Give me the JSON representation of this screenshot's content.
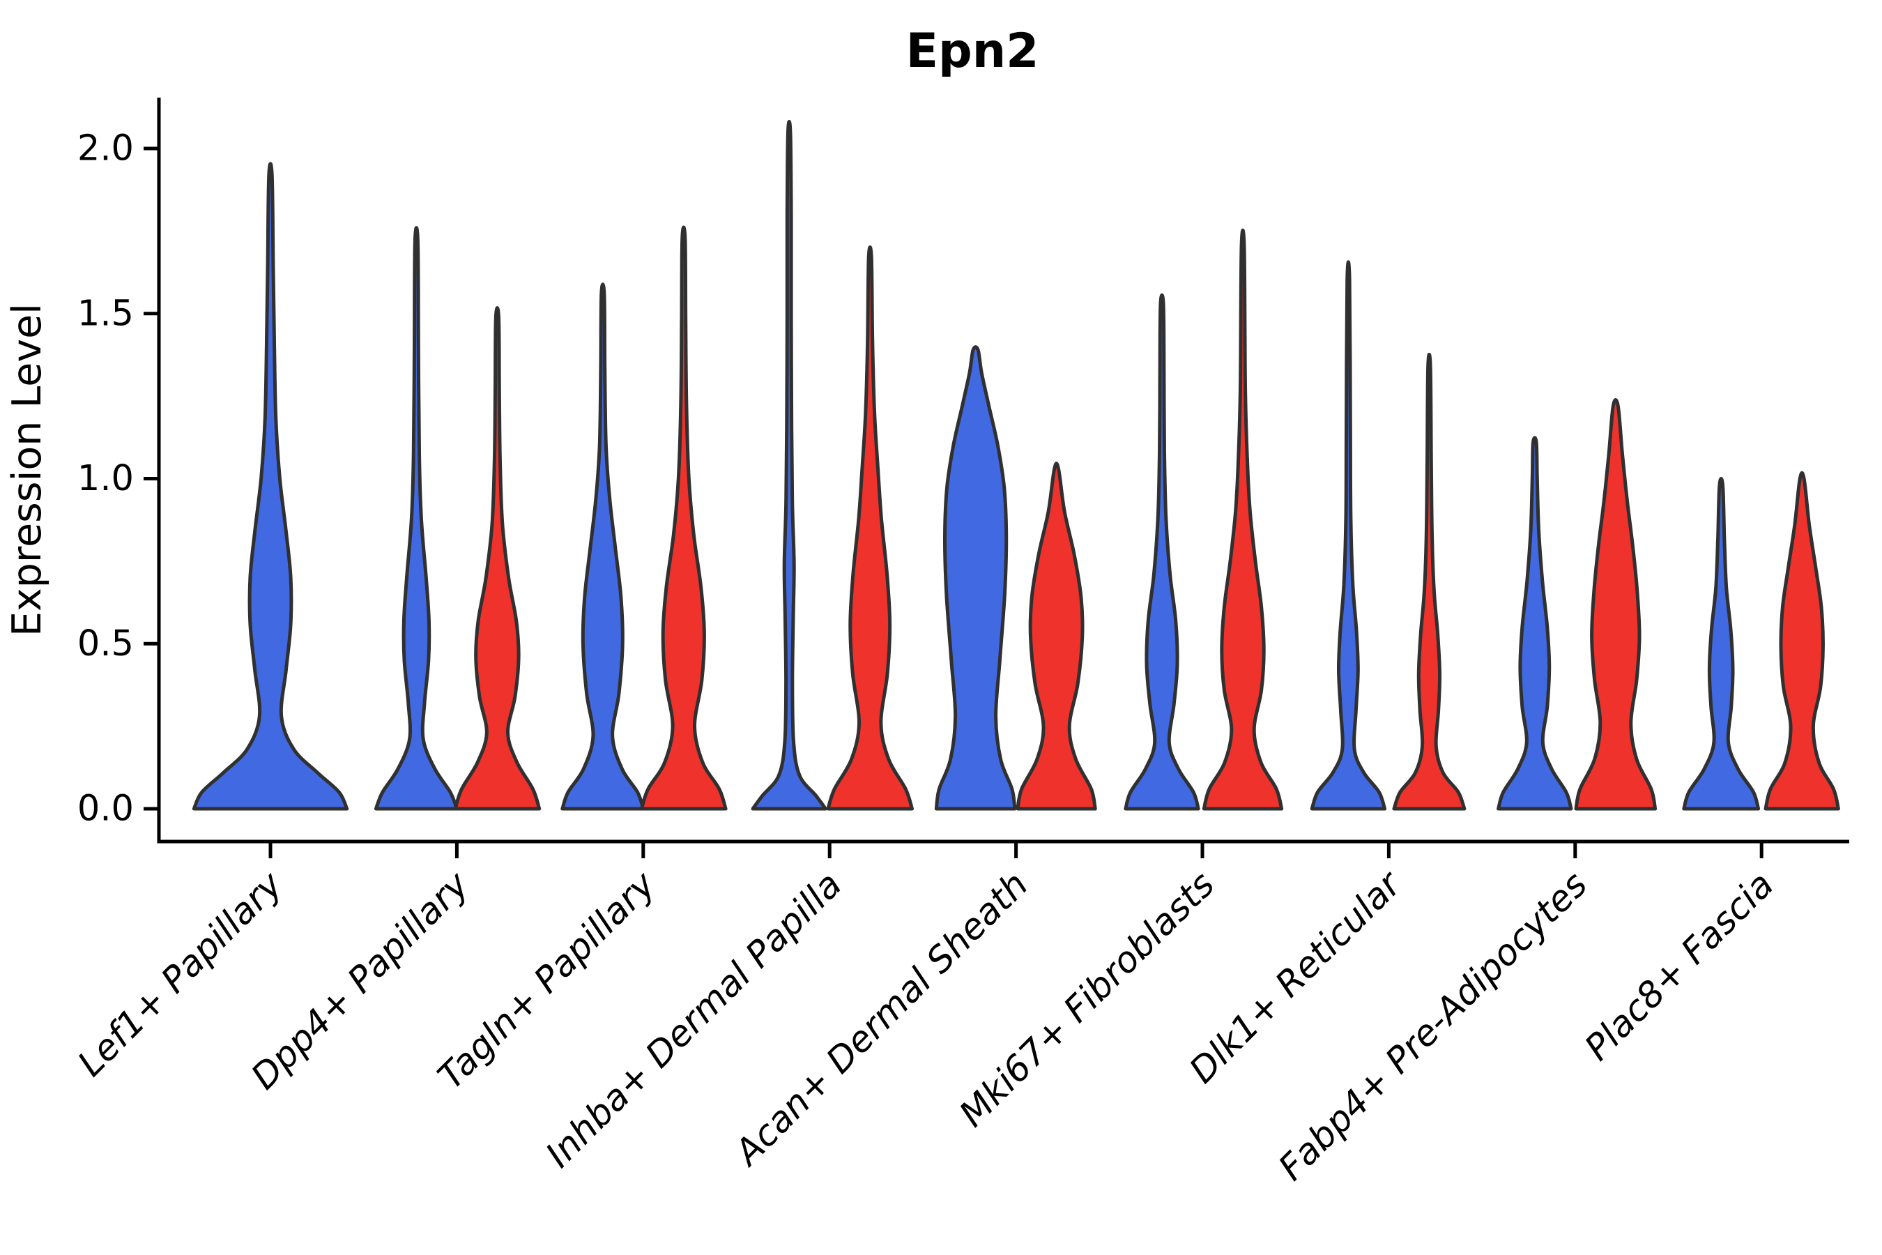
{
  "title": "Epn2",
  "chart_data": {
    "type": "violin",
    "title": "Epn2",
    "ylabel": "Expression Level",
    "xlabel": "",
    "yticks": [
      "0.0",
      "0.5",
      "1.0",
      "1.5",
      "2.0"
    ],
    "ytick_values": [
      0.0,
      0.5,
      1.0,
      1.5,
      2.0
    ],
    "ylim": [
      -0.1,
      2.15
    ],
    "grid": "off",
    "legend": "none",
    "categories": [
      "Lef1+ Papillary",
      "Dpp4+ Papillary",
      "Tagln+ Papillary",
      "Inhba+ Dermal Papilla",
      "Acan+ Dermal Sheath",
      "Mki67+ Fibroblasts",
      "Dlk1+ Reticular",
      "Fabp4+ Pre-Adipocytes",
      "Plac8+ Fascia"
    ],
    "colors": {
      "blue": "#4169E1",
      "red": "#F0322D",
      "outline": "#303030",
      "axis": "#000000",
      "text": "#000000"
    },
    "groups": [
      {
        "category": "Lef1+ Papillary",
        "violins": [
          {
            "color": "blue",
            "max": 1.92,
            "width": 1.93,
            "profile": [
              [
                0,
                0.98
              ],
              [
                0.05,
                0.88
              ],
              [
                0.11,
                0.6
              ],
              [
                0.18,
                0.3
              ],
              [
                0.28,
                0.14
              ],
              [
                0.42,
                0.2
              ],
              [
                0.56,
                0.26
              ],
              [
                0.7,
                0.26
              ],
              [
                0.84,
                0.2
              ],
              [
                1.0,
                0.12
              ],
              [
                1.18,
                0.07
              ],
              [
                1.4,
                0.05
              ],
              [
                1.65,
                0.035
              ],
              [
                1.92,
                0.02
              ]
            ]
          }
        ]
      },
      {
        "category": "Dpp4+ Papillary",
        "violins": [
          {
            "color": "blue",
            "max": 1.72,
            "width": 1,
            "profile": [
              [
                0,
                1.0
              ],
              [
                0.05,
                0.84
              ],
              [
                0.12,
                0.46
              ],
              [
                0.21,
                0.17
              ],
              [
                0.32,
                0.2
              ],
              [
                0.45,
                0.3
              ],
              [
                0.57,
                0.31
              ],
              [
                0.7,
                0.24
              ],
              [
                0.88,
                0.12
              ],
              [
                1.08,
                0.07
              ],
              [
                1.4,
                0.05
              ],
              [
                1.72,
                0.035
              ]
            ]
          },
          {
            "color": "red",
            "max": 1.49,
            "width": 1,
            "profile": [
              [
                0,
                1.04
              ],
              [
                0.06,
                0.88
              ],
              [
                0.14,
                0.49
              ],
              [
                0.23,
                0.26
              ],
              [
                0.34,
                0.44
              ],
              [
                0.46,
                0.53
              ],
              [
                0.57,
                0.47
              ],
              [
                0.7,
                0.28
              ],
              [
                0.86,
                0.13
              ],
              [
                1.05,
                0.07
              ],
              [
                1.27,
                0.05
              ],
              [
                1.49,
                0.035
              ]
            ]
          }
        ]
      },
      {
        "category": "Tagln+ Papillary",
        "violins": [
          {
            "color": "blue",
            "max": 1.56,
            "width": 1,
            "profile": [
              [
                0,
                1.0
              ],
              [
                0.05,
                0.86
              ],
              [
                0.12,
                0.48
              ],
              [
                0.22,
                0.24
              ],
              [
                0.35,
                0.4
              ],
              [
                0.5,
                0.49
              ],
              [
                0.64,
                0.45
              ],
              [
                0.79,
                0.31
              ],
              [
                0.94,
                0.17
              ],
              [
                1.1,
                0.08
              ],
              [
                1.33,
                0.05
              ],
              [
                1.56,
                0.035
              ]
            ]
          },
          {
            "color": "red",
            "max": 1.73,
            "width": 1,
            "profile": [
              [
                0,
                1.04
              ],
              [
                0.06,
                0.88
              ],
              [
                0.14,
                0.47
              ],
              [
                0.25,
                0.27
              ],
              [
                0.39,
                0.45
              ],
              [
                0.53,
                0.51
              ],
              [
                0.67,
                0.43
              ],
              [
                0.83,
                0.25
              ],
              [
                1.0,
                0.13
              ],
              [
                1.22,
                0.07
              ],
              [
                1.48,
                0.05
              ],
              [
                1.73,
                0.035
              ]
            ]
          }
        ]
      },
      {
        "category": "Inhba+ Dermal Papilla",
        "violins": [
          {
            "color": "blue",
            "max": 2.05,
            "width": 1,
            "profile": [
              [
                0,
                0.9
              ],
              [
                0.04,
                0.66
              ],
              [
                0.1,
                0.26
              ],
              [
                0.2,
                0.11
              ],
              [
                0.38,
                0.08
              ],
              [
                0.58,
                0.1
              ],
              [
                0.74,
                0.12
              ],
              [
                0.92,
                0.08
              ],
              [
                1.15,
                0.06
              ],
              [
                1.5,
                0.05
              ],
              [
                1.8,
                0.05
              ],
              [
                2.05,
                0.03
              ]
            ]
          },
          {
            "color": "red",
            "max": 1.67,
            "width": 1,
            "profile": [
              [
                0,
                1.04
              ],
              [
                0.06,
                0.88
              ],
              [
                0.15,
                0.46
              ],
              [
                0.26,
                0.27
              ],
              [
                0.41,
                0.43
              ],
              [
                0.56,
                0.49
              ],
              [
                0.71,
                0.42
              ],
              [
                0.88,
                0.28
              ],
              [
                1.04,
                0.19
              ],
              [
                1.2,
                0.11
              ],
              [
                1.42,
                0.06
              ],
              [
                1.67,
                0.035
              ]
            ]
          }
        ]
      },
      {
        "category": "Acan+ Dermal Sheath",
        "violins": [
          {
            "color": "blue",
            "max": 1.39,
            "width": 1,
            "profile": [
              [
                0,
                0.97
              ],
              [
                0.06,
                0.9
              ],
              [
                0.15,
                0.62
              ],
              [
                0.28,
                0.5
              ],
              [
                0.45,
                0.6
              ],
              [
                0.65,
                0.72
              ],
              [
                0.82,
                0.76
              ],
              [
                0.97,
                0.71
              ],
              [
                1.1,
                0.55
              ],
              [
                1.22,
                0.33
              ],
              [
                1.32,
                0.15
              ],
              [
                1.39,
                0.06
              ]
            ]
          },
          {
            "color": "red",
            "max": 1.03,
            "width": 1,
            "profile": [
              [
                0,
                0.96
              ],
              [
                0.06,
                0.86
              ],
              [
                0.15,
                0.48
              ],
              [
                0.25,
                0.32
              ],
              [
                0.38,
                0.53
              ],
              [
                0.52,
                0.64
              ],
              [
                0.64,
                0.61
              ],
              [
                0.77,
                0.44
              ],
              [
                0.9,
                0.2
              ],
              [
                1.03,
                0.05
              ]
            ]
          }
        ]
      },
      {
        "category": "Mki67+ Fibroblasts",
        "violins": [
          {
            "color": "blue",
            "max": 1.53,
            "width": 1,
            "profile": [
              [
                0,
                0.9
              ],
              [
                0.05,
                0.78
              ],
              [
                0.12,
                0.41
              ],
              [
                0.2,
                0.18
              ],
              [
                0.32,
                0.3
              ],
              [
                0.44,
                0.38
              ],
              [
                0.57,
                0.34
              ],
              [
                0.71,
                0.2
              ],
              [
                0.88,
                0.1
              ],
              [
                1.08,
                0.06
              ],
              [
                1.32,
                0.05
              ],
              [
                1.53,
                0.035
              ]
            ]
          },
          {
            "color": "red",
            "max": 1.7,
            "width": 1,
            "profile": [
              [
                0,
                0.96
              ],
              [
                0.06,
                0.83
              ],
              [
                0.14,
                0.45
              ],
              [
                0.24,
                0.28
              ],
              [
                0.36,
                0.46
              ],
              [
                0.48,
                0.52
              ],
              [
                0.61,
                0.46
              ],
              [
                0.75,
                0.31
              ],
              [
                0.9,
                0.18
              ],
              [
                1.06,
                0.11
              ],
              [
                1.28,
                0.06
              ],
              [
                1.7,
                0.035
              ]
            ]
          }
        ]
      },
      {
        "category": "Dlk1+ Reticular",
        "violins": [
          {
            "color": "blue",
            "max": 1.6,
            "width": 1,
            "profile": [
              [
                0,
                0.9
              ],
              [
                0.05,
                0.76
              ],
              [
                0.11,
                0.38
              ],
              [
                0.18,
                0.15
              ],
              [
                0.3,
                0.19
              ],
              [
                0.42,
                0.24
              ],
              [
                0.54,
                0.2
              ],
              [
                0.68,
                0.11
              ],
              [
                0.88,
                0.06
              ],
              [
                1.15,
                0.05
              ],
              [
                1.6,
                0.03
              ]
            ]
          },
          {
            "color": "red",
            "max": 1.34,
            "width": 1,
            "profile": [
              [
                0,
                0.87
              ],
              [
                0.05,
                0.72
              ],
              [
                0.11,
                0.34
              ],
              [
                0.19,
                0.17
              ],
              [
                0.3,
                0.23
              ],
              [
                0.41,
                0.26
              ],
              [
                0.53,
                0.21
              ],
              [
                0.66,
                0.12
              ],
              [
                0.83,
                0.07
              ],
              [
                1.05,
                0.05
              ],
              [
                1.34,
                0.03
              ]
            ]
          }
        ]
      },
      {
        "category": "Fabp4+ Pre-Adipocytes",
        "violins": [
          {
            "color": "blue",
            "max": 1.11,
            "width": 1,
            "profile": [
              [
                0,
                0.9
              ],
              [
                0.05,
                0.78
              ],
              [
                0.12,
                0.42
              ],
              [
                0.2,
                0.2
              ],
              [
                0.31,
                0.31
              ],
              [
                0.43,
                0.36
              ],
              [
                0.55,
                0.31
              ],
              [
                0.69,
                0.19
              ],
              [
                0.84,
                0.1
              ],
              [
                1.0,
                0.06
              ],
              [
                1.11,
                0.04
              ]
            ]
          },
          {
            "color": "red",
            "max": 1.22,
            "width": 1,
            "profile": [
              [
                0,
                0.98
              ],
              [
                0.06,
                0.88
              ],
              [
                0.15,
                0.52
              ],
              [
                0.26,
                0.38
              ],
              [
                0.39,
                0.52
              ],
              [
                0.52,
                0.59
              ],
              [
                0.65,
                0.54
              ],
              [
                0.79,
                0.43
              ],
              [
                0.93,
                0.29
              ],
              [
                1.07,
                0.17
              ],
              [
                1.22,
                0.06
              ]
            ]
          }
        ]
      },
      {
        "category": "Plac8+ Fascia",
        "violins": [
          {
            "color": "blue",
            "max": 0.98,
            "width": 1,
            "profile": [
              [
                0,
                0.92
              ],
              [
                0.05,
                0.8
              ],
              [
                0.12,
                0.42
              ],
              [
                0.2,
                0.18
              ],
              [
                0.31,
                0.25
              ],
              [
                0.42,
                0.29
              ],
              [
                0.54,
                0.24
              ],
              [
                0.67,
                0.13
              ],
              [
                0.82,
                0.08
              ],
              [
                0.98,
                0.04
              ]
            ]
          },
          {
            "color": "red",
            "max": 1.0,
            "width": 1,
            "profile": [
              [
                0,
                0.9
              ],
              [
                0.06,
                0.78
              ],
              [
                0.14,
                0.42
              ],
              [
                0.25,
                0.28
              ],
              [
                0.37,
                0.46
              ],
              [
                0.49,
                0.52
              ],
              [
                0.61,
                0.48
              ],
              [
                0.73,
                0.34
              ],
              [
                0.86,
                0.18
              ],
              [
                1.0,
                0.05
              ]
            ]
          }
        ]
      }
    ]
  }
}
